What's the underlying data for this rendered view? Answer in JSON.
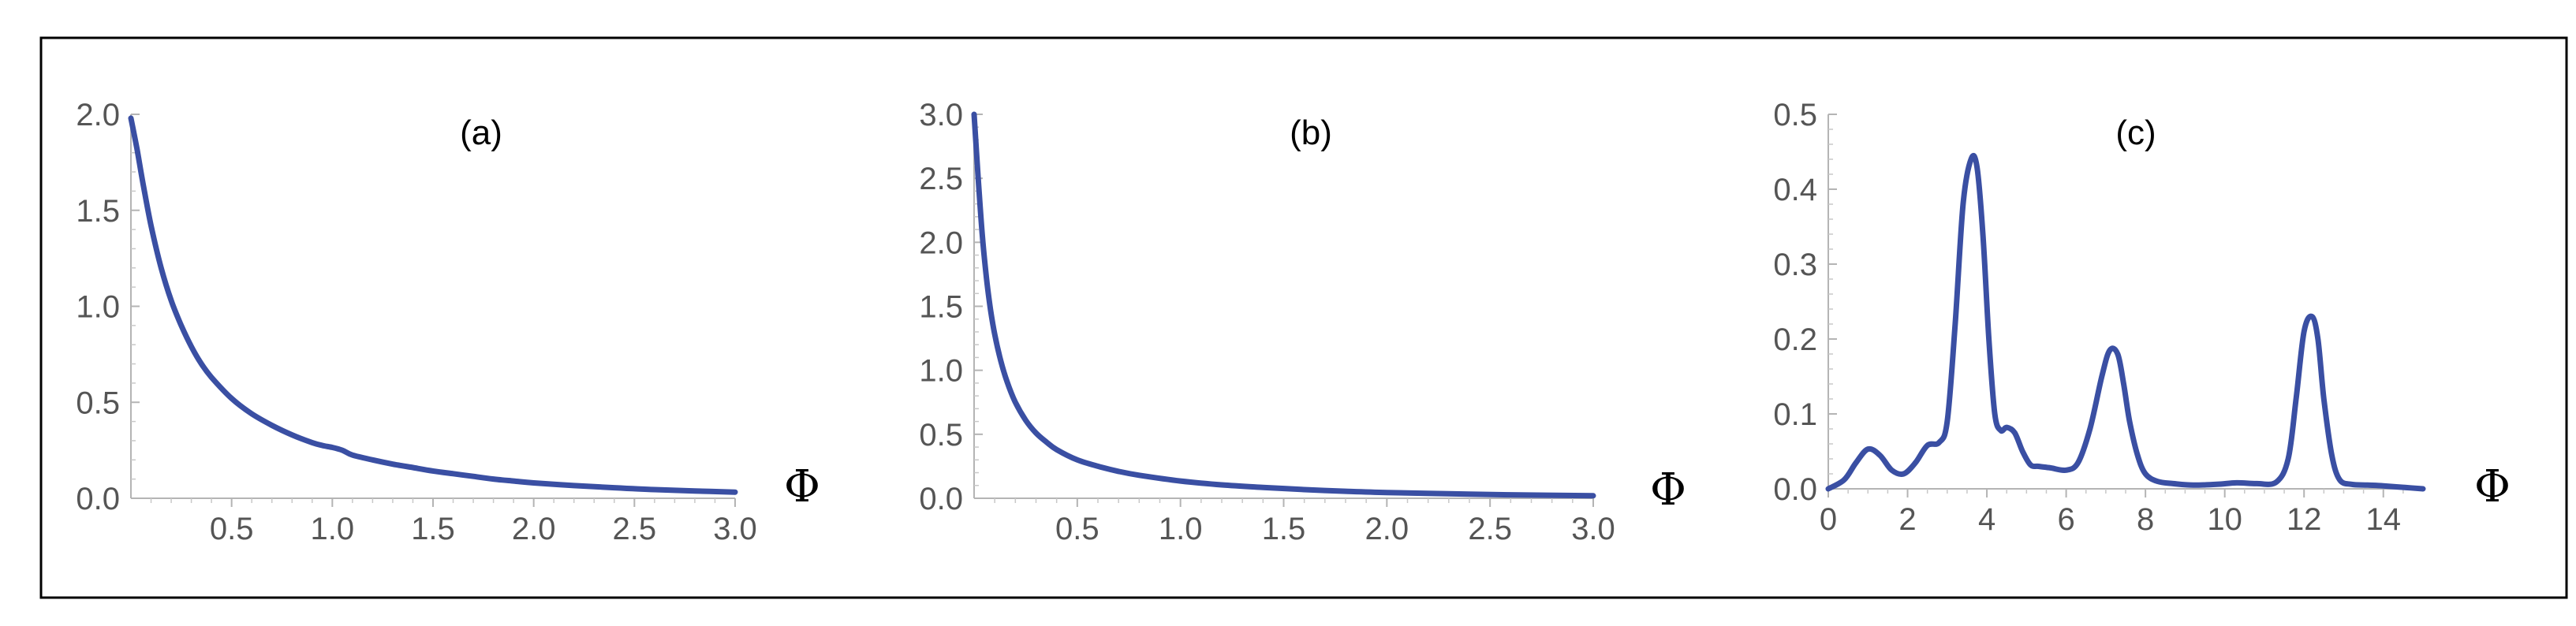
{
  "colors": {
    "series": "#3a4fa3",
    "axis": "#b4b4b4",
    "tick_text": "#555555"
  },
  "chart_data": [
    {
      "type": "line",
      "panel_label": "(a)",
      "xlabel": "Φ",
      "ylabel": "",
      "xlim": [
        0.0,
        3.0
      ],
      "ylim": [
        0.0,
        2.0
      ],
      "xticks": [
        0.5,
        1.0,
        1.5,
        2.0,
        2.5,
        3.0
      ],
      "xtick_labels": [
        "0.5",
        "1.0",
        "1.5",
        "2.0",
        "2.5",
        "3.0"
      ],
      "yticks": [
        0.0,
        0.5,
        1.0,
        1.5,
        2.0
      ],
      "ytick_labels": [
        "0.0",
        "0.5",
        "1.0",
        "1.5",
        "2.0"
      ],
      "grid": false,
      "series": [
        {
          "x": [
            0.0,
            0.03,
            0.06,
            0.1,
            0.15,
            0.2,
            0.25,
            0.3,
            0.35,
            0.4,
            0.5,
            0.6,
            0.7,
            0.8,
            0.9,
            0.95,
            1.0,
            1.05,
            1.1,
            1.2,
            1.3,
            1.4,
            1.5,
            1.6,
            1.7,
            1.8,
            1.9,
            2.0,
            2.2,
            2.4,
            2.6,
            2.8,
            3.0
          ],
          "y": [
            1.98,
            1.82,
            1.64,
            1.42,
            1.2,
            1.03,
            0.9,
            0.79,
            0.7,
            0.63,
            0.52,
            0.44,
            0.38,
            0.33,
            0.29,
            0.275,
            0.265,
            0.25,
            0.225,
            0.2,
            0.178,
            0.16,
            0.142,
            0.128,
            0.114,
            0.1,
            0.09,
            0.08,
            0.066,
            0.055,
            0.045,
            0.038,
            0.032
          ]
        }
      ]
    },
    {
      "type": "line",
      "panel_label": "(b)",
      "xlabel": "Φ",
      "ylabel": "",
      "xlim": [
        0.0,
        3.0
      ],
      "ylim": [
        0.0,
        3.0
      ],
      "xticks": [
        0.5,
        1.0,
        1.5,
        2.0,
        2.5,
        3.0
      ],
      "xtick_labels": [
        "0.5",
        "1.0",
        "1.5",
        "2.0",
        "2.5",
        "3.0"
      ],
      "yticks": [
        0.0,
        0.5,
        1.0,
        1.5,
        2.0,
        2.5,
        3.0
      ],
      "ytick_labels": [
        "0.0",
        "0.5",
        "1.0",
        "1.5",
        "2.0",
        "2.5",
        "3.0"
      ],
      "grid": false,
      "series": [
        {
          "x": [
            0.0,
            0.02,
            0.04,
            0.06,
            0.08,
            0.1,
            0.13,
            0.16,
            0.2,
            0.25,
            0.3,
            0.35,
            0.4,
            0.5,
            0.6,
            0.7,
            0.8,
            1.0,
            1.2,
            1.4,
            1.6,
            1.8,
            2.0,
            2.3,
            2.6,
            3.0
          ],
          "y": [
            3.0,
            2.5,
            2.05,
            1.72,
            1.47,
            1.28,
            1.07,
            0.91,
            0.75,
            0.61,
            0.51,
            0.44,
            0.38,
            0.3,
            0.25,
            0.21,
            0.18,
            0.135,
            0.105,
            0.085,
            0.068,
            0.055,
            0.045,
            0.035,
            0.027,
            0.02
          ]
        }
      ]
    },
    {
      "type": "line",
      "panel_label": "(c)",
      "xlabel": "Φ",
      "ylabel": "",
      "xlim": [
        0,
        15
      ],
      "ylim": [
        0.0,
        0.5
      ],
      "xticks": [
        0,
        2,
        4,
        6,
        8,
        10,
        12,
        14
      ],
      "xtick_labels": [
        "0",
        "2",
        "4",
        "6",
        "8",
        "10",
        "12",
        "14"
      ],
      "yticks": [
        0.0,
        0.1,
        0.2,
        0.3,
        0.4,
        0.5
      ],
      "ytick_labels": [
        "0.0",
        "0.1",
        "0.2",
        "0.3",
        "0.4",
        "0.5"
      ],
      "grid": false,
      "series": [
        {
          "x": [
            0.0,
            0.4,
            0.7,
            1.0,
            1.3,
            1.6,
            1.9,
            2.2,
            2.5,
            2.8,
            3.0,
            3.2,
            3.4,
            3.6,
            3.75,
            3.9,
            4.05,
            4.2,
            4.35,
            4.5,
            4.7,
            4.9,
            5.1,
            5.3,
            5.6,
            6.0,
            6.3,
            6.6,
            6.9,
            7.1,
            7.3,
            7.45,
            7.6,
            7.8,
            8.0,
            8.3,
            8.7,
            9.2,
            9.8,
            10.3,
            10.8,
            11.3,
            11.6,
            11.8,
            12.0,
            12.2,
            12.35,
            12.5,
            12.7,
            12.9,
            13.2,
            13.6,
            14.0,
            14.5,
            15.0
          ],
          "y": [
            0.0,
            0.012,
            0.035,
            0.053,
            0.045,
            0.025,
            0.02,
            0.035,
            0.058,
            0.062,
            0.09,
            0.22,
            0.38,
            0.44,
            0.43,
            0.34,
            0.2,
            0.1,
            0.078,
            0.082,
            0.075,
            0.05,
            0.032,
            0.03,
            0.028,
            0.025,
            0.035,
            0.08,
            0.15,
            0.185,
            0.18,
            0.14,
            0.09,
            0.045,
            0.02,
            0.01,
            0.007,
            0.005,
            0.006,
            0.008,
            0.007,
            0.009,
            0.04,
            0.12,
            0.21,
            0.23,
            0.2,
            0.12,
            0.045,
            0.012,
            0.006,
            0.005,
            0.004,
            0.002,
            0.0
          ]
        }
      ]
    }
  ]
}
